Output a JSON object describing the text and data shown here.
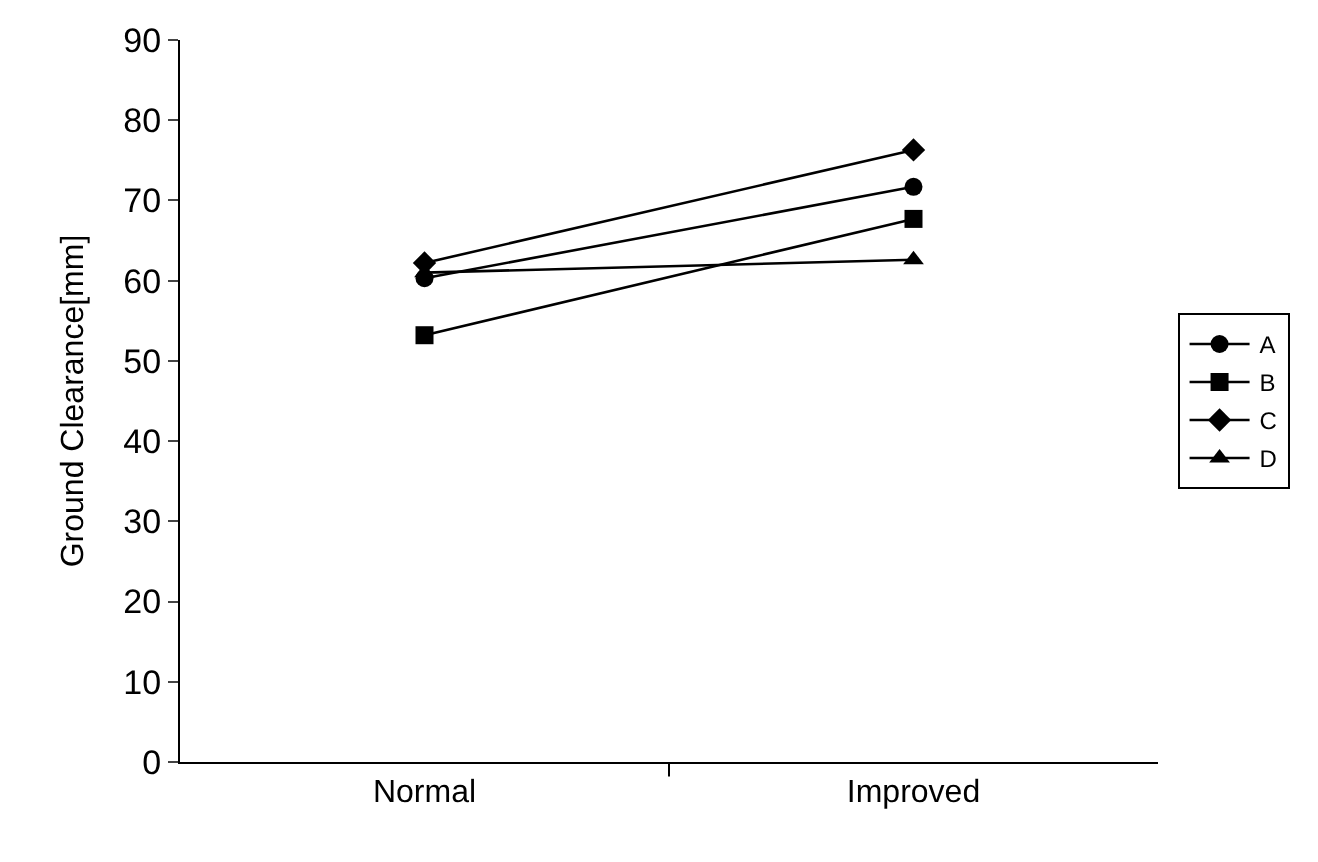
{
  "chart_data": {
    "type": "line",
    "ylabel": "Ground Clearance[mm]",
    "categories": [
      "Normal",
      "Improved"
    ],
    "series": [
      {
        "name": "A",
        "color": "#000000",
        "marker": "circle",
        "values": [
          60.3,
          71.7
        ]
      },
      {
        "name": "B",
        "color": "#000000",
        "marker": "square",
        "values": [
          53.2,
          67.7
        ]
      },
      {
        "name": "C",
        "color": "#000000",
        "marker": "diamond",
        "values": [
          62.2,
          76.3
        ]
      },
      {
        "name": "D",
        "color": "#000000",
        "marker": "triangle",
        "values": [
          61.0,
          62.6
        ]
      }
    ],
    "ylim": [
      0,
      90
    ],
    "yticks": [
      0,
      10,
      20,
      30,
      40,
      50,
      60,
      70,
      80,
      90
    ],
    "legend": "right",
    "line_style": "solid"
  }
}
